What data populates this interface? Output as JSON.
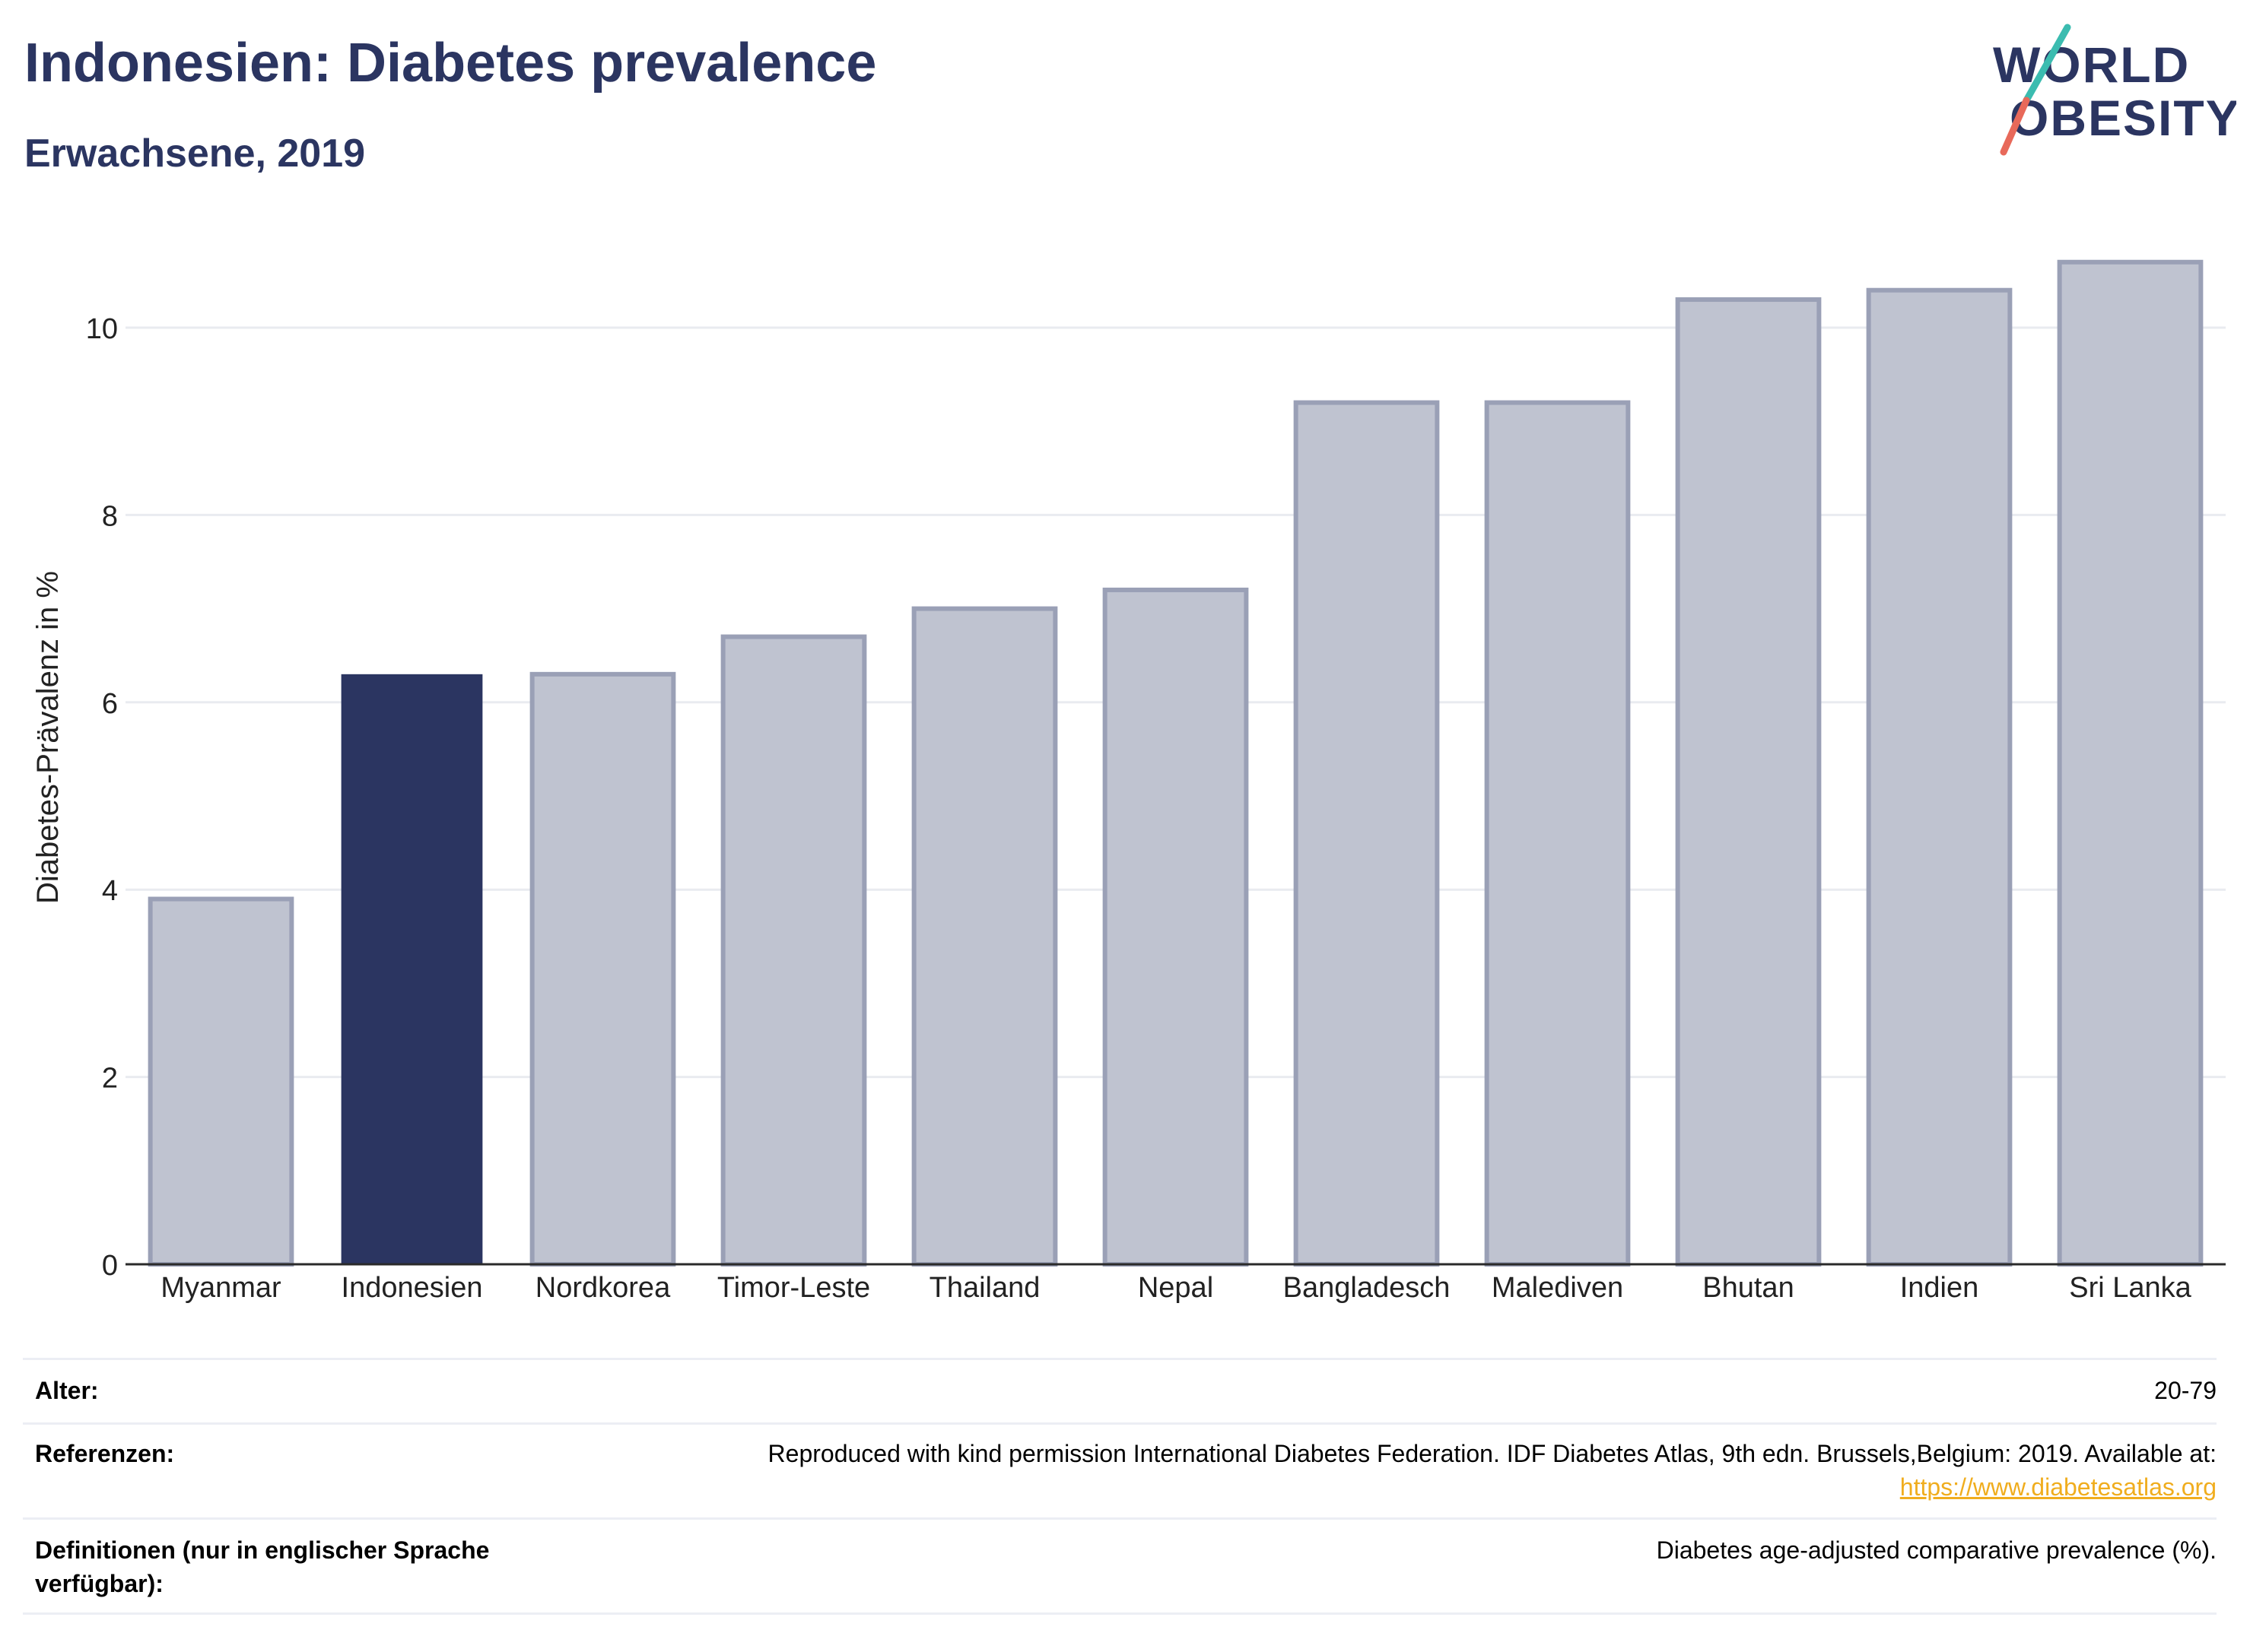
{
  "header": {
    "title": "Indonesien: Diabetes prevalence",
    "subtitle": "Erwachsene, 2019",
    "logo_text": "WORLD OBESITY"
  },
  "chart_data": {
    "type": "bar",
    "title": "Indonesien: Diabetes prevalence",
    "subtitle": "Erwachsene, 2019",
    "ylabel": "Diabetes-Prävalenz in %",
    "xlabel": "",
    "ylim": [
      0,
      11
    ],
    "yticks": [
      0,
      2,
      4,
      6,
      8,
      10
    ],
    "grid": true,
    "categories": [
      "Myanmar",
      "Indonesien",
      "Nordkorea",
      "Timor-Leste",
      "Thailand",
      "Nepal",
      "Bangladesch",
      "Malediven",
      "Bhutan",
      "Indien",
      "Sri Lanka"
    ],
    "values": [
      3.9,
      6.3,
      6.3,
      6.7,
      7.0,
      7.2,
      9.2,
      9.2,
      10.3,
      10.4,
      10.7
    ],
    "highlight": "Indonesien",
    "colors": {
      "highlight": "#2b3561",
      "other_fill": "#bfc3d0",
      "other_stroke": "#9aa0b6",
      "grid": "#e9ebf0",
      "axis": "#2a2a2a"
    }
  },
  "metadata": {
    "age_label": "Alter:",
    "age_value": "20-79",
    "ref_label": "Referenzen:",
    "ref_text": "Reproduced with kind permission International Diabetes Federation. IDF Diabetes Atlas, 9th edn. Brussels,Belgium: 2019. Available at:",
    "ref_link": "https://www.diabetesatlas.org",
    "def_label": "Definitionen (nur in englischer Sprache verfügbar):",
    "def_value": "Diabetes age-adjusted comparative prevalence (%)."
  }
}
